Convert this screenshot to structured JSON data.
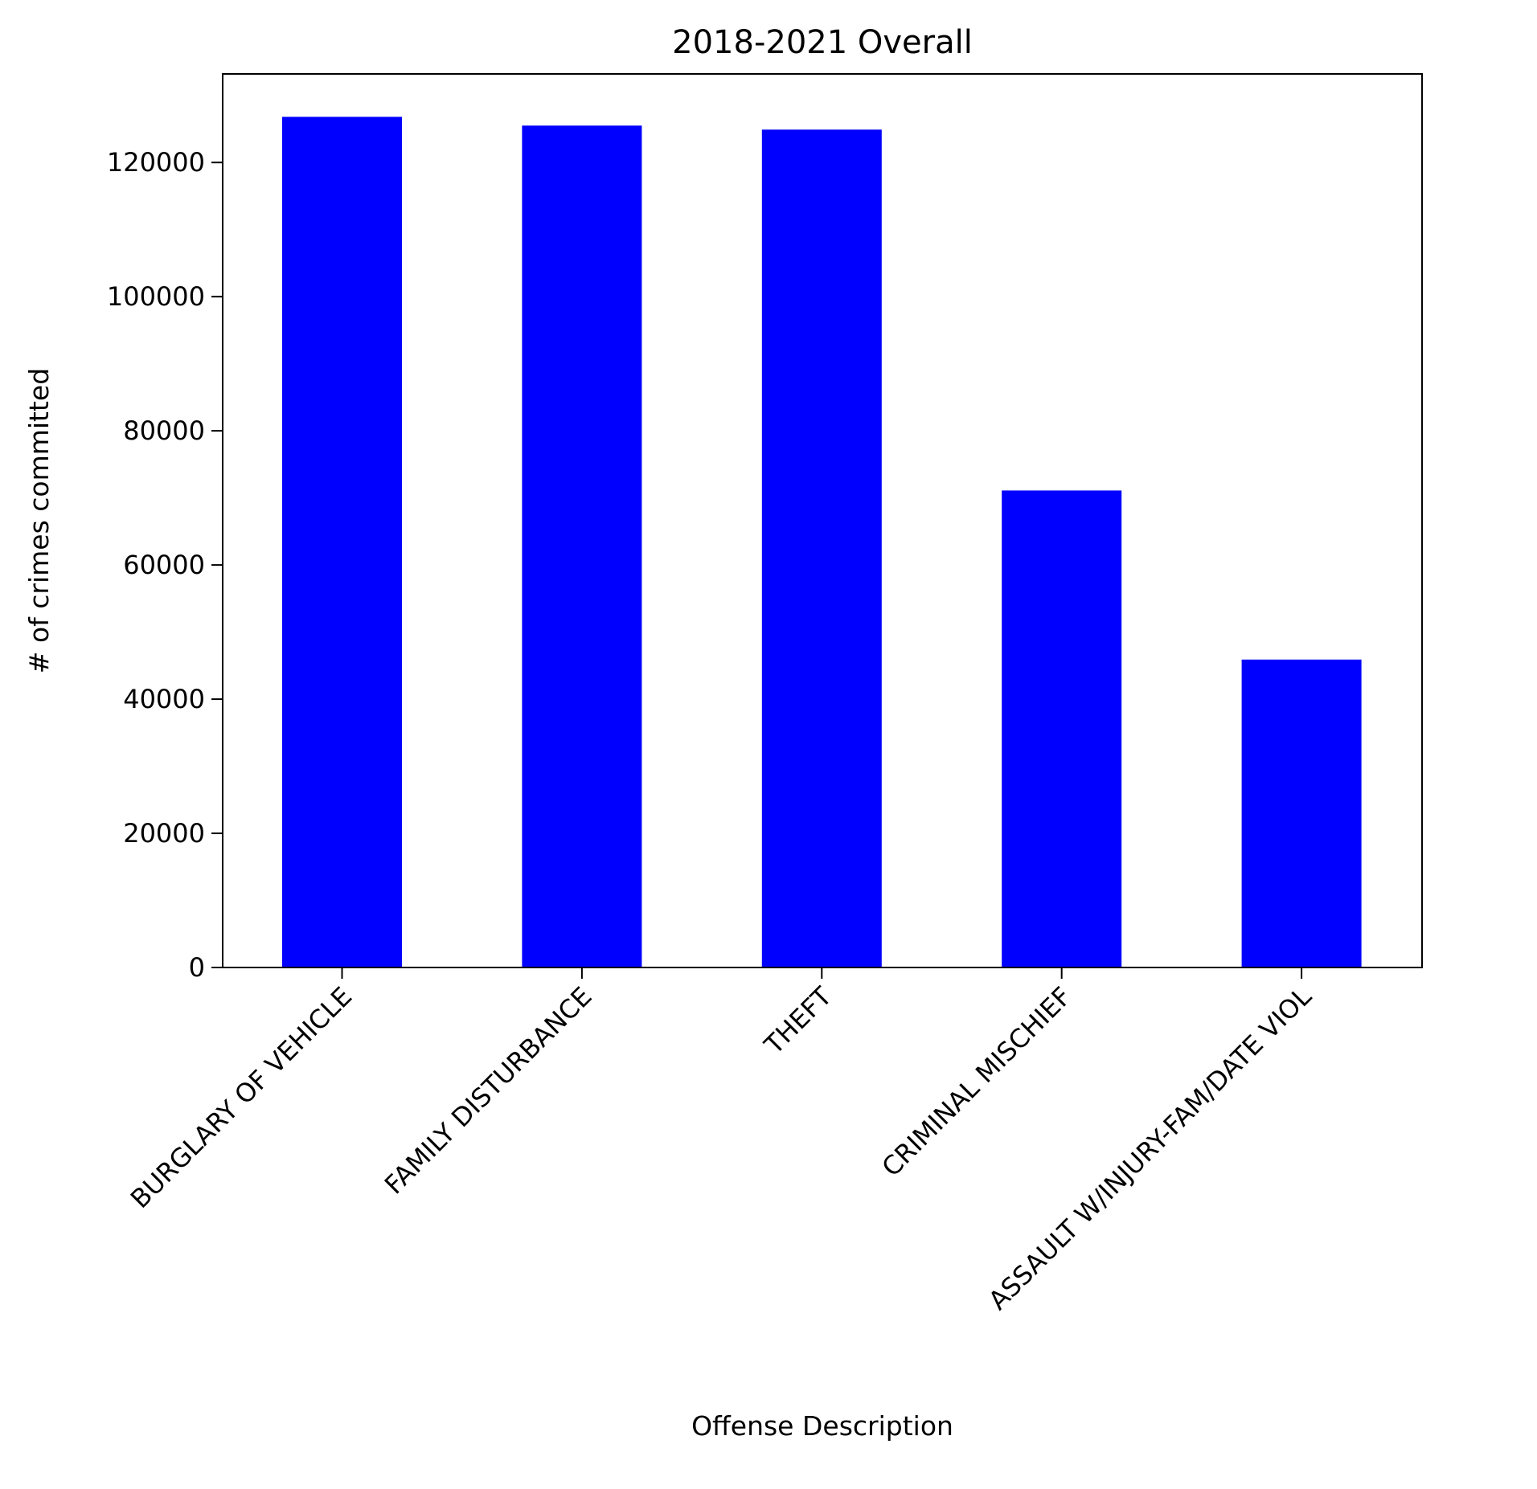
{
  "chart_data": {
    "type": "bar",
    "title": "2018-2021 Overall",
    "xlabel": "Offense Description",
    "ylabel": "# of crimes committed",
    "categories": [
      "BURGLARY OF VEHICLE",
      "FAMILY DISTURBANCE",
      "THEFT",
      "CRIMINAL MISCHIEF",
      "ASSAULT W/INJURY-FAM/DATE VIOL"
    ],
    "values": [
      126800,
      125500,
      124900,
      71100,
      45900
    ],
    "ylim": [
      0,
      133200
    ],
    "yticks": [
      0,
      20000,
      40000,
      60000,
      80000,
      100000,
      120000
    ],
    "bar_color": "#0000ff",
    "grid": false,
    "legend": "none"
  }
}
